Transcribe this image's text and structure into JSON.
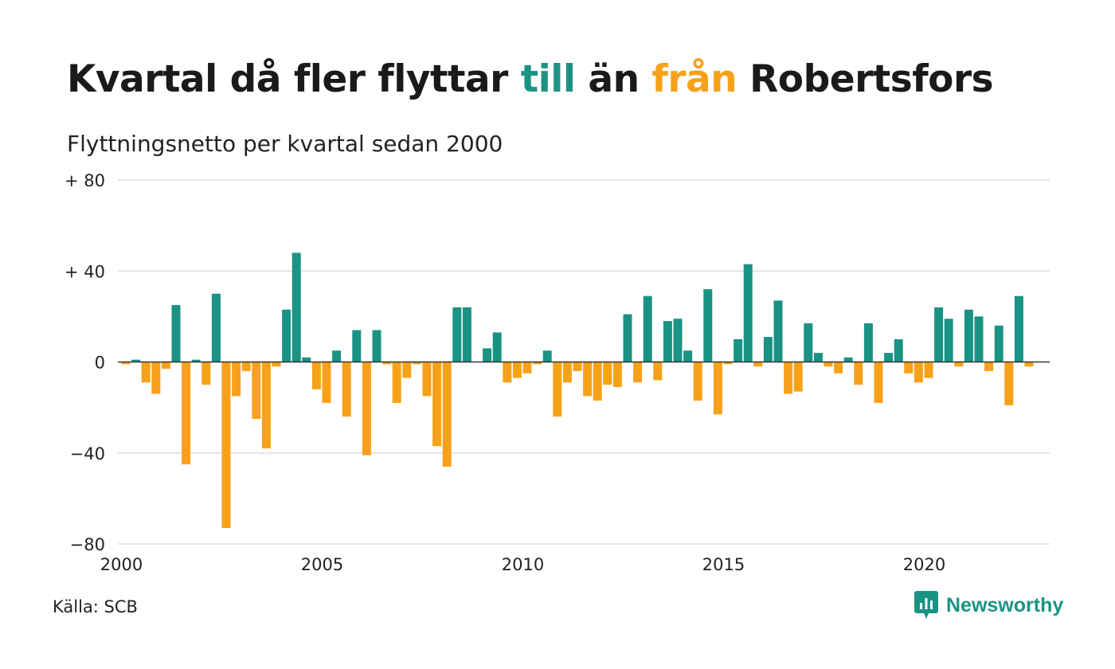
{
  "title": {
    "part1": "Kvartal då fler flyttar ",
    "till": "till",
    "part2": " än ",
    "fran": "från",
    "part3": " Robertsfors"
  },
  "subtitle": "Flyttningsnetto per kvartal sedan 2000",
  "source": "Källa: SCB",
  "brand": {
    "name": "Newsworthy",
    "icon": "newsworthy-logo-icon"
  },
  "colors": {
    "positive": "#1a9384",
    "negative": "#f7a11a",
    "grid": "#dddddd",
    "zero_line": "#333333"
  },
  "chart_data": {
    "type": "bar",
    "title": "Kvartal då fler flyttar till än från Robertsfors",
    "subtitle": "Flyttningsnetto per kvartal sedan 2000",
    "x_start": "2000 Q1",
    "x_ticks": [
      "2000",
      "2005",
      "2010",
      "2015",
      "2020"
    ],
    "y_ticks": [
      "+ 80",
      "+ 40",
      "0",
      "−40",
      "−80"
    ],
    "y_tick_values": [
      80,
      40,
      0,
      -40,
      -80
    ],
    "ylim": [
      -80,
      80
    ],
    "grid": true,
    "values": [
      -1,
      1,
      -9,
      -14,
      -3,
      25,
      -45,
      1,
      -10,
      30,
      -73,
      -15,
      -4,
      -25,
      -38,
      -2,
      23,
      48,
      2,
      -12,
      -18,
      5,
      -24,
      14,
      -41,
      14,
      -1,
      -18,
      -7,
      -1,
      -15,
      -37,
      -46,
      24,
      24,
      0,
      6,
      13,
      -9,
      -7,
      -5,
      -1,
      5,
      -24,
      -9,
      -4,
      -15,
      -17,
      -10,
      -11,
      21,
      -9,
      29,
      -8,
      18,
      19,
      5,
      -17,
      32,
      -23,
      -1,
      10,
      43,
      -2,
      11,
      27,
      -14,
      -13,
      17,
      4,
      -2,
      -5,
      2,
      -10,
      17,
      -18,
      4,
      10,
      -5,
      -9,
      -7,
      24,
      19,
      -2,
      23,
      20,
      -4,
      16,
      -19,
      29,
      -2
    ]
  }
}
